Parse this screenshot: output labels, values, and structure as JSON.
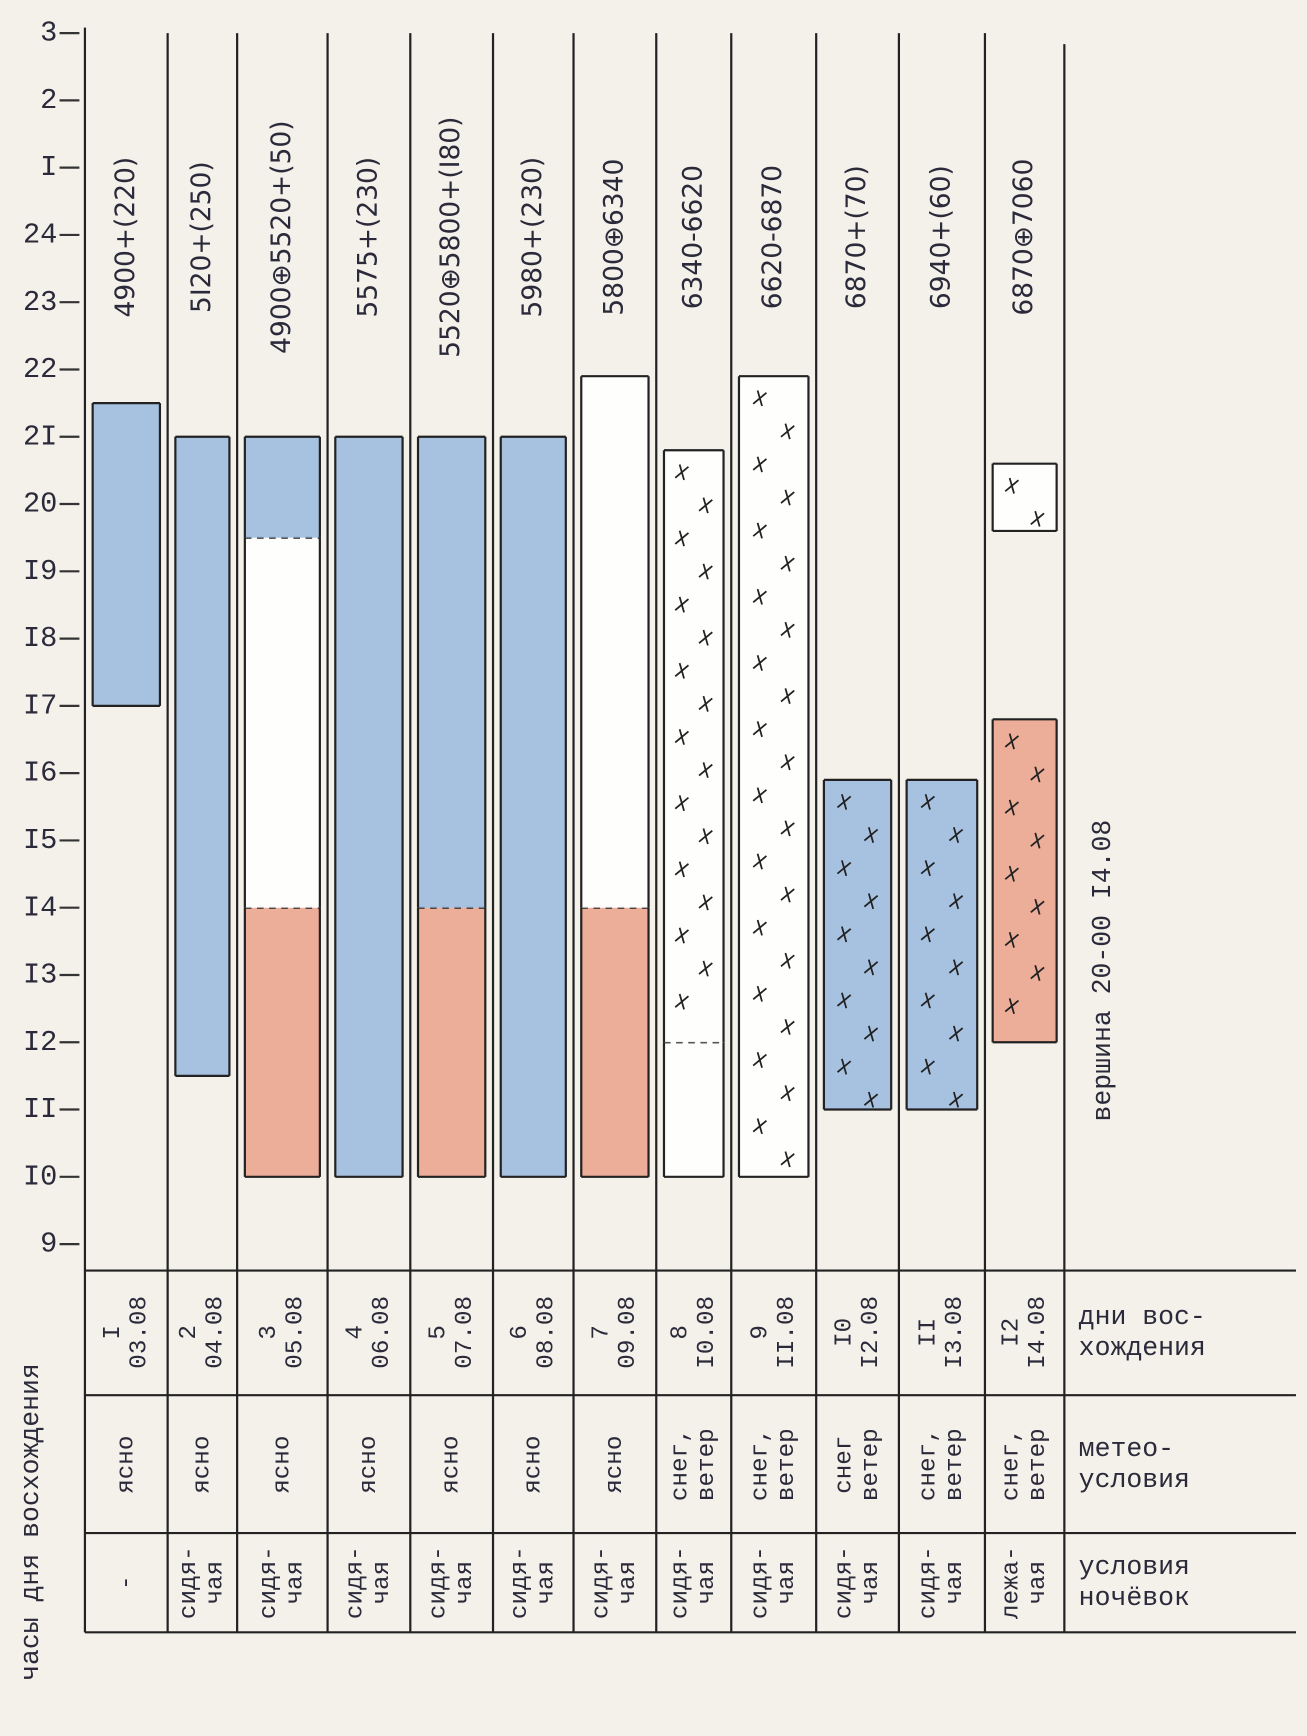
{
  "chart_data": {
    "type": "range-bar",
    "y_axis_label": "часы дня восхождения",
    "ylim": [
      9,
      27
    ],
    "yticks": [
      {
        "value": 27,
        "label": "3"
      },
      {
        "value": 26,
        "label": "2"
      },
      {
        "value": 25,
        "label": "I"
      },
      24,
      23,
      22,
      {
        "value": 21,
        "label": "2I"
      },
      20,
      {
        "value": 19,
        "label": "I9"
      },
      {
        "value": 18,
        "label": "I8"
      },
      {
        "value": 17,
        "label": "I7"
      },
      {
        "value": 16,
        "label": "I6"
      },
      {
        "value": 15,
        "label": "I5"
      },
      {
        "value": 14,
        "label": "I4"
      },
      {
        "value": 13,
        "label": "I3"
      },
      {
        "value": 12,
        "label": "I2"
      },
      {
        "value": 11,
        "label": "II"
      },
      {
        "value": 10,
        "label": "I0"
      },
      9
    ],
    "columns": [
      {
        "header": "4900+(220)",
        "day": "I",
        "date": "03.08",
        "weather": [
          "ясно"
        ],
        "lodging": [
          "-"
        ],
        "segments": [
          {
            "start": 17,
            "end": 21.5,
            "color": "#9fbbe0",
            "snow": false
          }
        ]
      },
      {
        "header": "5I20+(250)",
        "day": "2",
        "date": "04.08",
        "weather": [
          "ясно"
        ],
        "lodging": [
          "сидя-",
          "чая"
        ],
        "segments": [
          {
            "start": 11.5,
            "end": 21,
            "color": "#9fbbe0",
            "snow": false
          }
        ]
      },
      {
        "header": "4900⊕5520+(50)",
        "day": "3",
        "date": "05.08",
        "weather": [
          "ясно"
        ],
        "lodging": [
          "сидя-",
          "чая"
        ],
        "segments": [
          {
            "start": 10,
            "end": 14,
            "color": "#eba590",
            "snow": false
          },
          {
            "start": 14,
            "end": 19.5,
            "color": "#ffffff",
            "snow": false
          },
          {
            "start": 19.5,
            "end": 21,
            "color": "#9fbbe0",
            "snow": false
          }
        ]
      },
      {
        "header": "5575+(230)",
        "day": "4",
        "date": "06.08",
        "weather": [
          "ясно"
        ],
        "lodging": [
          "сидя-",
          "чая"
        ],
        "segments": [
          {
            "start": 10,
            "end": 21,
            "color": "#9fbbe0",
            "snow": false
          }
        ]
      },
      {
        "header": "5520⊕5800+(I80)",
        "day": "5",
        "date": "07.08",
        "weather": [
          "ясно"
        ],
        "lodging": [
          "сидя-",
          "чая"
        ],
        "segments": [
          {
            "start": 10,
            "end": 14,
            "color": "#eba590",
            "snow": false
          },
          {
            "start": 14,
            "end": 21,
            "color": "#9fbbe0",
            "snow": false
          }
        ]
      },
      {
        "header": "5980+(230)",
        "day": "6",
        "date": "08.08",
        "weather": [
          "ясно"
        ],
        "lodging": [
          "сидя-",
          "чая"
        ],
        "segments": [
          {
            "start": 10,
            "end": 21,
            "color": "#9fbbe0",
            "snow": false
          }
        ]
      },
      {
        "header": "5800⊕6340",
        "day": "7",
        "date": "09.08",
        "weather": [
          "ясно"
        ],
        "lodging": [
          "сидя-",
          "чая"
        ],
        "segments": [
          {
            "start": 10,
            "end": 14,
            "color": "#eba590",
            "snow": false
          },
          {
            "start": 14,
            "end": 21.9,
            "color": "#ffffff",
            "snow": false
          }
        ]
      },
      {
        "header": "6340-6620",
        "day": "8",
        "date": "I0.08",
        "weather": [
          "снег,",
          "ветер"
        ],
        "lodging": [
          "сидя-",
          "чая"
        ],
        "segments": [
          {
            "start": 10,
            "end": 12,
            "color": "#ffffff",
            "snow": false
          },
          {
            "start": 12,
            "end": 20.8,
            "color": "#ffffff",
            "snow": true
          }
        ]
      },
      {
        "header": "6620-6870",
        "day": "9",
        "date": "II.08",
        "weather": [
          "снег,",
          "ветер"
        ],
        "lodging": [
          "сидя-",
          "чая"
        ],
        "segments": [
          {
            "start": 10,
            "end": 21.9,
            "color": "#ffffff",
            "snow": true
          }
        ]
      },
      {
        "header": "6870+(70)",
        "day": "I0",
        "date": "I2.08",
        "weather": [
          "снег",
          "ветер"
        ],
        "lodging": [
          "сидя-",
          "чая"
        ],
        "segments": [
          {
            "start": 11,
            "end": 15.9,
            "color": "#9fbbe0",
            "snow": true
          }
        ]
      },
      {
        "header": "6940+(60)",
        "day": "II",
        "date": "I3.08",
        "weather": [
          "снег,",
          "ветер"
        ],
        "lodging": [
          "сидя-",
          "чая"
        ],
        "segments": [
          {
            "start": 11,
            "end": 15.9,
            "color": "#9fbbe0",
            "snow": true
          }
        ]
      },
      {
        "header": "6870⊕7060",
        "day": "I2",
        "date": "I4.08",
        "weather": [
          "снег,",
          "ветер"
        ],
        "lodging": [
          "лежа-",
          "чая"
        ],
        "segments": [
          {
            "start": 12,
            "end": 16.8,
            "color": "#eba590",
            "snow": true
          },
          {
            "start": 19.6,
            "end": 20.6,
            "color": "#ffffff",
            "snow": true
          }
        ]
      }
    ],
    "row_labels": [
      [
        "дни вос-",
        "хождения"
      ],
      [
        "метео-",
        "условия"
      ],
      [
        "условия",
        "ночёвок"
      ]
    ],
    "annotation": "вершина  20-00  I4.08"
  }
}
